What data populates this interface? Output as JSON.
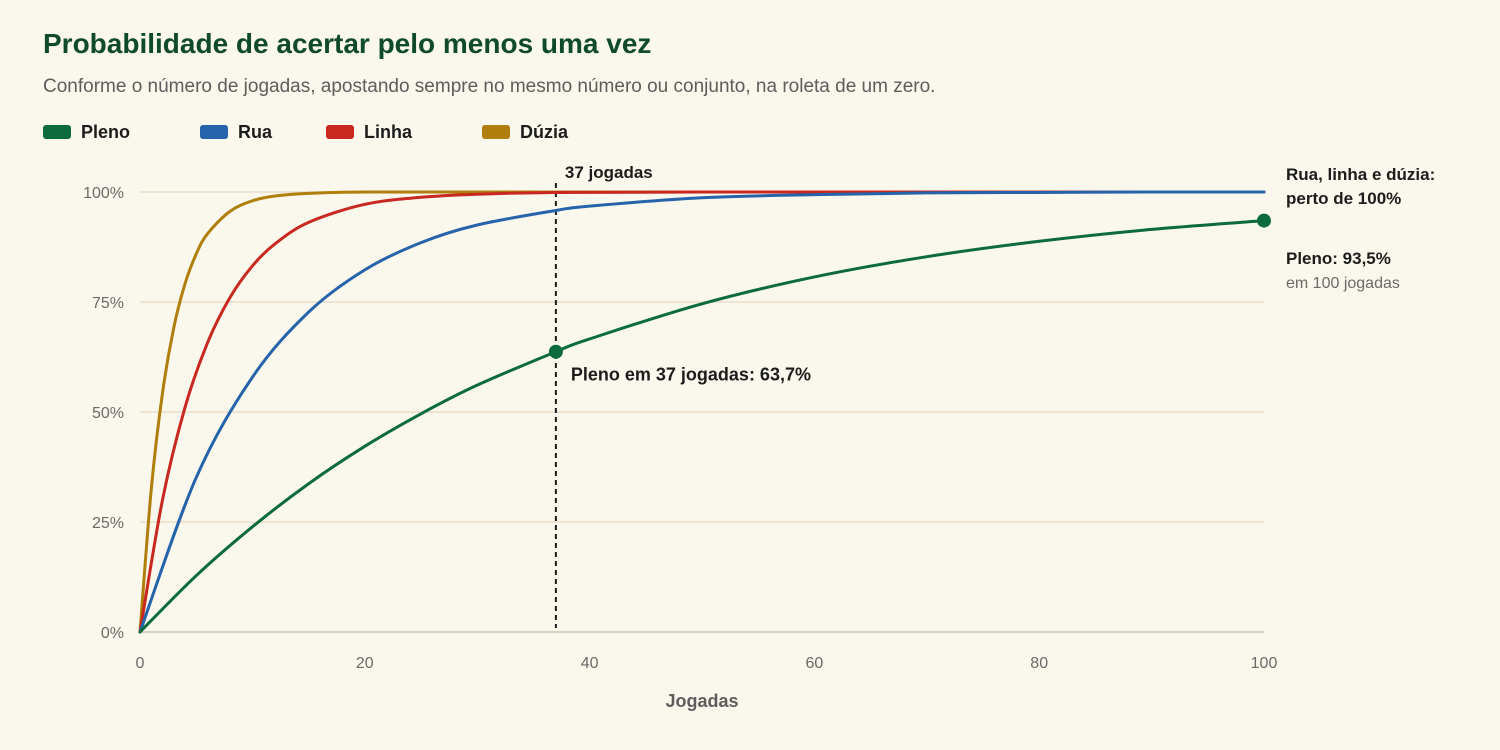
{
  "title": "Probabilidade de acertar pelo menos uma vez",
  "subtitle": "Conforme o número de jogadas, apostando sempre no mesmo número ou conjunto, na roleta de um zero.",
  "legend": [
    {
      "label": "Pleno",
      "color": "#0b6b3a"
    },
    {
      "label": "Rua",
      "color": "#2563ab"
    },
    {
      "label": "Linha",
      "color": "#c8281f"
    },
    {
      "label": "Dúzia",
      "color": "#b07e0b"
    }
  ],
  "chart_data": {
    "type": "line",
    "xlabel": "Jogadas",
    "ylabel": "",
    "xlim": [
      0,
      100
    ],
    "ylim": [
      0,
      1
    ],
    "x_ticks": [
      "0",
      "20",
      "40",
      "60",
      "80",
      "100"
    ],
    "y_ticks": [
      "0%",
      "25%",
      "50%",
      "75%",
      "100%"
    ],
    "grid": "horizontal",
    "series": [
      {
        "name": "Pleno",
        "color": "#0b6b3a",
        "x": [
          0,
          5,
          10,
          15,
          20,
          25,
          30,
          37,
          40,
          50,
          60,
          70,
          80,
          90,
          100
        ],
        "y": [
          0,
          0.128,
          0.239,
          0.337,
          0.422,
          0.496,
          0.561,
          0.637,
          0.666,
          0.746,
          0.807,
          0.853,
          0.888,
          0.915,
          0.935
        ]
      },
      {
        "name": "Rua",
        "color": "#2563ab",
        "x": [
          0,
          5,
          10,
          15,
          20,
          25,
          30,
          37,
          40,
          50,
          60,
          70,
          80,
          90,
          100
        ],
        "y": [
          0,
          0.351,
          0.579,
          0.727,
          0.823,
          0.885,
          0.925,
          0.958,
          0.968,
          0.987,
          0.994,
          0.998,
          0.999,
          1.0,
          1.0
        ]
      },
      {
        "name": "Linha",
        "color": "#c8281f",
        "x": [
          0,
          2,
          4,
          6,
          8,
          10,
          12,
          15,
          20,
          25,
          30,
          37,
          50,
          70,
          100
        ],
        "y": [
          0,
          0.3,
          0.51,
          0.657,
          0.76,
          0.832,
          0.882,
          0.931,
          0.972,
          0.988,
          0.995,
          0.999,
          1.0,
          1.0,
          1.0
        ]
      },
      {
        "name": "Dúzia",
        "color": "#b07e0b",
        "x": [
          0,
          1,
          2,
          3,
          4,
          5,
          6,
          8,
          10,
          12,
          15,
          20,
          30,
          50,
          100
        ],
        "y": [
          0,
          0.324,
          0.543,
          0.691,
          0.791,
          0.859,
          0.905,
          0.956,
          0.98,
          0.991,
          0.997,
          1.0,
          1.0,
          1.0,
          1.0
        ]
      }
    ],
    "reference_line": {
      "x": 37,
      "label": "37 jogadas"
    },
    "points": [
      {
        "series": "Pleno",
        "x": 37,
        "y": 0.637,
        "label": "Pleno em 37 jogadas: 63,7%"
      },
      {
        "series": "Pleno",
        "x": 100,
        "y": 0.935
      }
    ],
    "annotations": {
      "top_right_line1": "Rua, linha e dúzia:",
      "top_right_line2": "perto de 100%",
      "end_title": "Pleno: 93,5%",
      "end_sub": "em 100 jogadas"
    }
  }
}
